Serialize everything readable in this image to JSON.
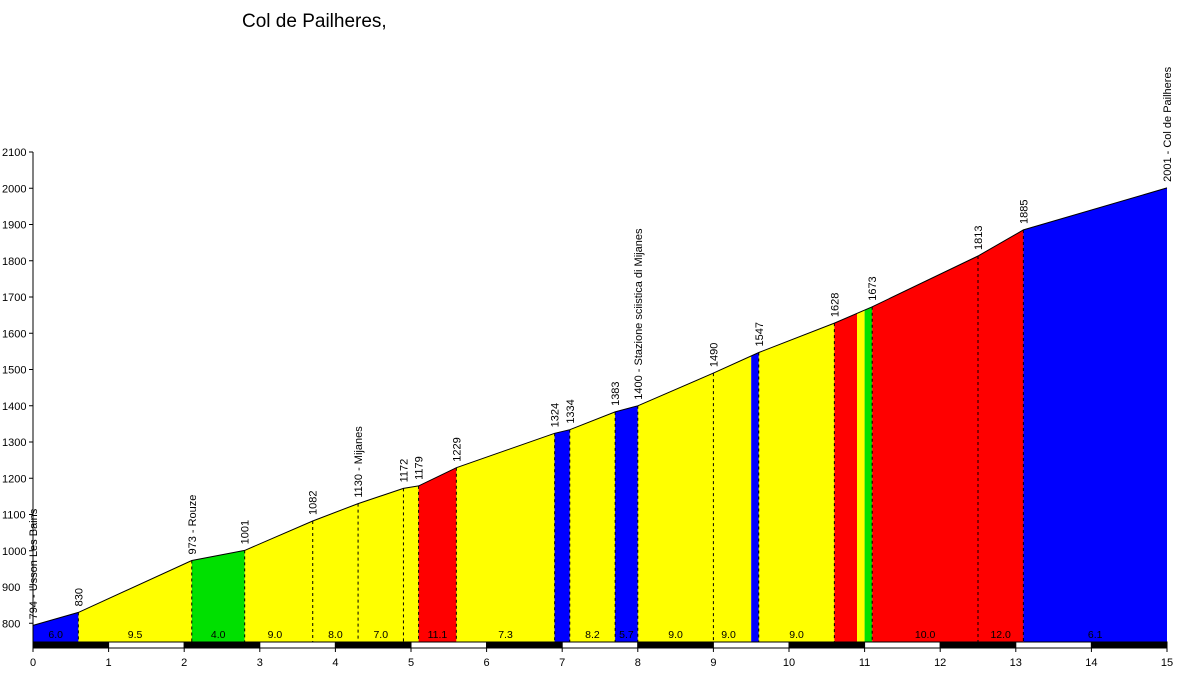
{
  "chart_data": {
    "type": "area",
    "title": "Col de Pailheres,",
    "xlabel": "",
    "ylabel": "",
    "xlim": [
      0,
      15
    ],
    "ylim": [
      750,
      2100
    ],
    "y_axis_floor": 740,
    "x_ticks": [
      0,
      1,
      2,
      3,
      4,
      5,
      6,
      7,
      8,
      9,
      10,
      11,
      12,
      13,
      14,
      15
    ],
    "y_ticks": [
      800,
      900,
      1000,
      1100,
      1200,
      1300,
      1400,
      1500,
      1600,
      1700,
      1800,
      1900,
      2000,
      2100
    ],
    "grid": false,
    "points": [
      {
        "x": 0.0,
        "y": 794,
        "label": "794 - Usson Les Bains"
      },
      {
        "x": 0.6,
        "y": 830,
        "label": "830"
      },
      {
        "x": 2.1,
        "y": 973,
        "label": "973 - Rouze"
      },
      {
        "x": 2.8,
        "y": 1001,
        "label": "1001"
      },
      {
        "x": 3.7,
        "y": 1082,
        "label": "1082"
      },
      {
        "x": 4.3,
        "y": 1130,
        "label": "1130 - Mijanes"
      },
      {
        "x": 4.9,
        "y": 1172,
        "label": "1172"
      },
      {
        "x": 5.1,
        "y": 1179,
        "label": "1179"
      },
      {
        "x": 5.6,
        "y": 1229,
        "label": "1229"
      },
      {
        "x": 6.9,
        "y": 1324,
        "label": "1324"
      },
      {
        "x": 7.1,
        "y": 1334,
        "label": "1334"
      },
      {
        "x": 7.7,
        "y": 1383,
        "label": "1383"
      },
      {
        "x": 8.0,
        "y": 1400,
        "label": "1400 - Stazione sciistica di Mijanes"
      },
      {
        "x": 9.0,
        "y": 1490,
        "label": "1490"
      },
      {
        "x": 9.6,
        "y": 1547,
        "label": "1547"
      },
      {
        "x": 10.6,
        "y": 1628,
        "label": "1628"
      },
      {
        "x": 11.1,
        "y": 1673,
        "label": "1673"
      },
      {
        "x": 12.5,
        "y": 1813,
        "label": "1813"
      },
      {
        "x": 13.1,
        "y": 1885,
        "label": "1885"
      },
      {
        "x": 15.0,
        "y": 2001,
        "label": "2001 - Col de Pailheres"
      }
    ],
    "segments": [
      {
        "from": 0.0,
        "to": 0.6,
        "color": "#0000ff",
        "gradient": "6.0"
      },
      {
        "from": 0.6,
        "to": 2.1,
        "color": "#ffff00",
        "gradient": "9.5"
      },
      {
        "from": 2.1,
        "to": 2.8,
        "color": "#00e000",
        "gradient": "4.0"
      },
      {
        "from": 2.8,
        "to": 5.1,
        "color": "#ffff00"
      },
      {
        "from": 5.1,
        "to": 5.6,
        "color": "#ff0000",
        "gradient": "11.1"
      },
      {
        "from": 5.6,
        "to": 6.9,
        "color": "#ffff00",
        "gradient": "7.3"
      },
      {
        "from": 6.9,
        "to": 7.1,
        "color": "#0000ff"
      },
      {
        "from": 7.1,
        "to": 7.7,
        "color": "#ffff00",
        "gradient": "8.2"
      },
      {
        "from": 7.7,
        "to": 8.0,
        "color": "#0000ff",
        "gradient": "5.7"
      },
      {
        "from": 8.0,
        "to": 9.5,
        "color": "#ffff00"
      },
      {
        "from": 9.5,
        "to": 9.6,
        "color": "#0000ff"
      },
      {
        "from": 9.6,
        "to": 10.6,
        "color": "#ffff00",
        "gradient": "9.0"
      },
      {
        "from": 10.6,
        "to": 10.9,
        "color": "#ff0000"
      },
      {
        "from": 10.9,
        "to": 11.0,
        "color": "#ffff00"
      },
      {
        "from": 11.0,
        "to": 11.1,
        "color": "#00e000"
      },
      {
        "from": 11.1,
        "to": 13.1,
        "color": "#ff0000"
      },
      {
        "from": 13.1,
        "to": 15.0,
        "color": "#0000ff",
        "gradient": "6.1"
      }
    ],
    "gradient_labels": [
      {
        "x": 3.2,
        "gradient": "9.0"
      },
      {
        "x": 4.0,
        "gradient": "8.0"
      },
      {
        "x": 4.6,
        "gradient": "7.0"
      },
      {
        "x": 8.5,
        "gradient": "9.0"
      },
      {
        "x": 9.2,
        "gradient": "9.0"
      },
      {
        "x": 11.8,
        "gradient": "10.0"
      },
      {
        "x": 12.8,
        "gradient": "12.0"
      }
    ],
    "km_bar": [
      {
        "from": 0.0,
        "to": 1.0,
        "color": "#000000"
      },
      {
        "from": 1.0,
        "to": 2.0,
        "color": "#ffffff"
      },
      {
        "from": 2.0,
        "to": 3.0,
        "color": "#000000"
      },
      {
        "from": 3.0,
        "to": 4.0,
        "color": "#ffffff"
      },
      {
        "from": 4.0,
        "to": 5.0,
        "color": "#000000"
      },
      {
        "from": 5.0,
        "to": 6.0,
        "color": "#ffffff"
      },
      {
        "from": 6.0,
        "to": 7.0,
        "color": "#000000"
      },
      {
        "from": 7.0,
        "to": 8.0,
        "color": "#ffffff"
      },
      {
        "from": 8.0,
        "to": 9.0,
        "color": "#000000"
      },
      {
        "from": 9.0,
        "to": 10.0,
        "color": "#ffffff"
      },
      {
        "from": 10.0,
        "to": 11.0,
        "color": "#000000"
      },
      {
        "from": 11.0,
        "to": 12.0,
        "color": "#ffffff"
      },
      {
        "from": 12.0,
        "to": 13.0,
        "color": "#000000"
      },
      {
        "from": 13.0,
        "to": 14.0,
        "color": "#ffffff"
      },
      {
        "from": 14.0,
        "to": 15.0,
        "color": "#000000"
      }
    ]
  }
}
